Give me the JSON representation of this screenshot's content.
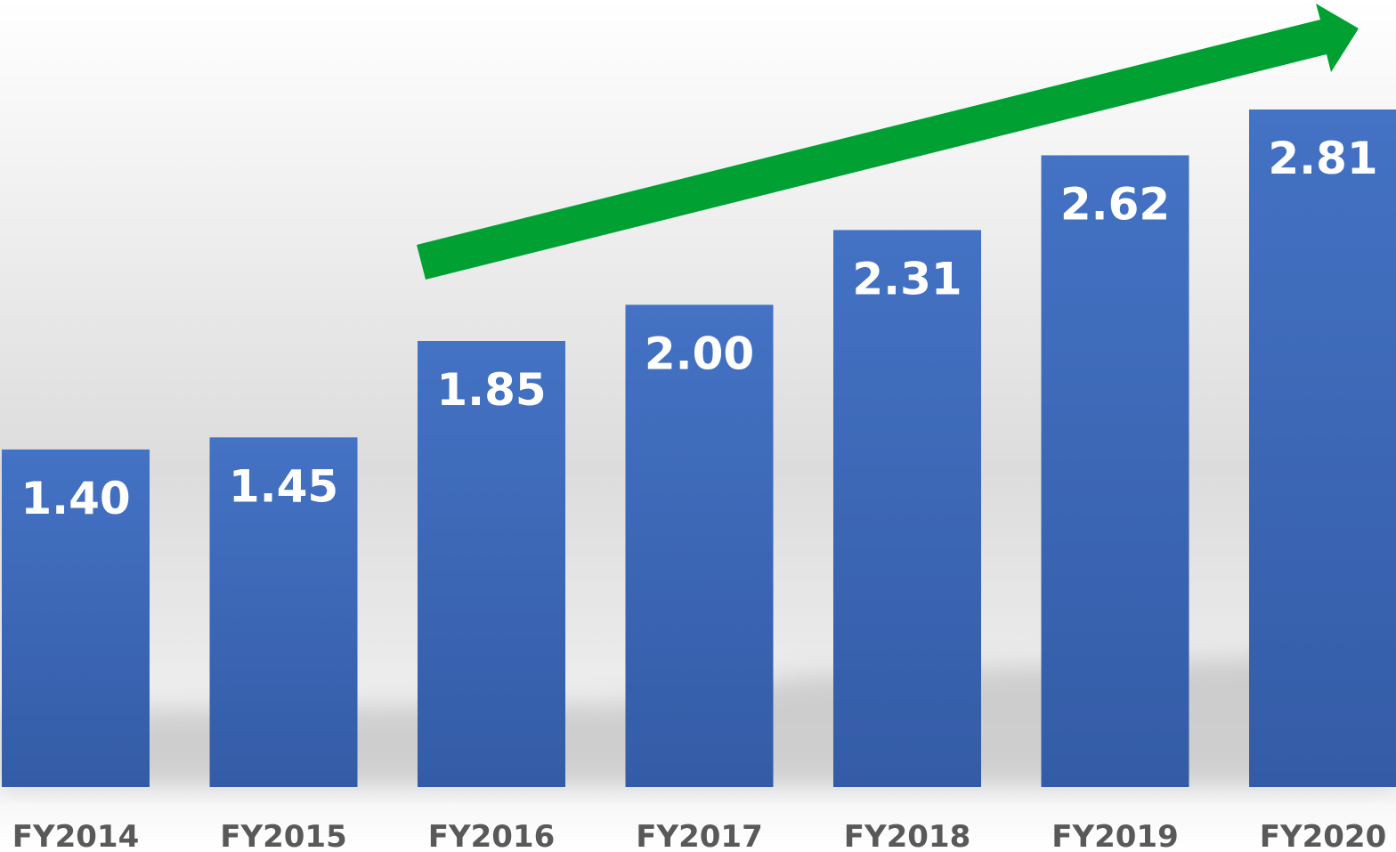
{
  "chart_data": {
    "type": "bar",
    "categories": [
      "FY2014",
      "FY2015",
      "FY2016",
      "FY2017",
      "FY2018",
      "FY2019",
      "FY2020"
    ],
    "values": [
      1.4,
      1.45,
      1.85,
      2.0,
      2.31,
      2.62,
      2.81
    ],
    "value_labels": [
      "1.40",
      "1.45",
      "1.85",
      "2.00",
      "2.31",
      "2.62",
      "2.81"
    ],
    "color": "#4472c4"
  }
}
